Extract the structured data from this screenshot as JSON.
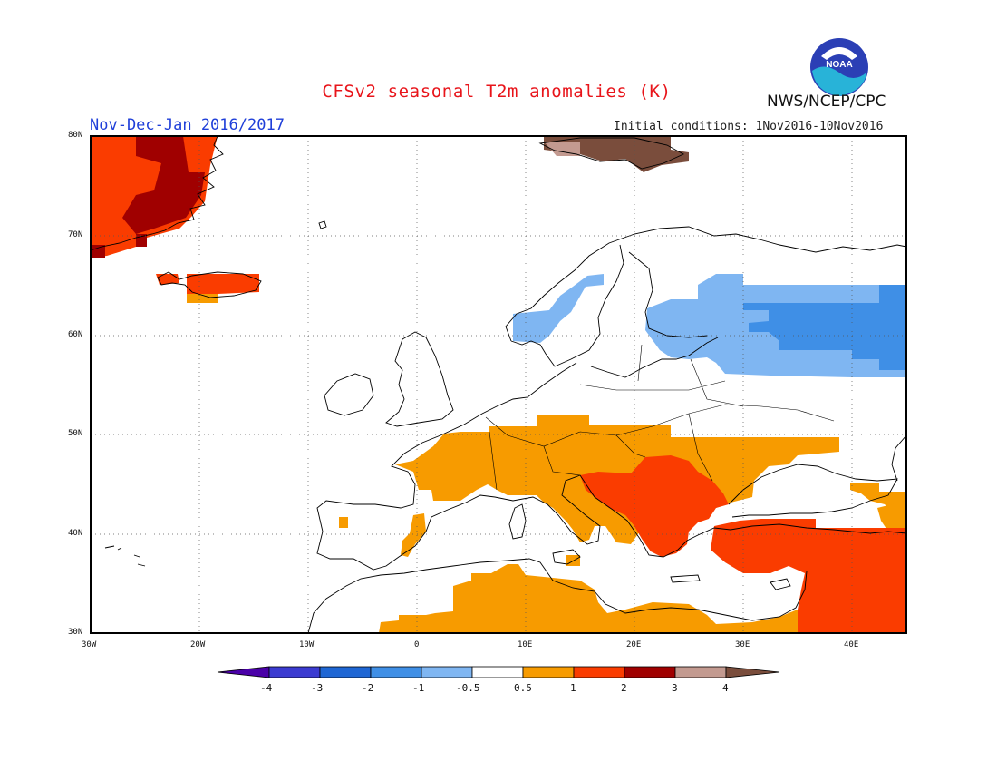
{
  "header": {
    "title": "CFSv2 seasonal T2m anomalies (K)",
    "period": "Nov-Dec-Jan 2016/2017",
    "organization": "NWS/NCEP/CPC",
    "initial_conditions": "Initial conditions: 1Nov2016-10Nov2016",
    "logo_text": "NOAA"
  },
  "map": {
    "lon_range": [
      -30,
      45
    ],
    "lat_range": [
      30,
      80
    ],
    "lon_ticks": [
      "30W",
      "20W",
      "10W",
      "0",
      "10E",
      "20E",
      "30E",
      "40E"
    ],
    "lat_ticks": [
      "80N",
      "70N",
      "60N",
      "50N",
      "40N",
      "30N"
    ],
    "grid": "dotted"
  },
  "colorbar": {
    "labels": [
      "-4",
      "-3",
      "-2",
      "-1",
      "-0.5",
      "0.5",
      "1",
      "2",
      "3",
      "4"
    ],
    "colors": [
      "#4a00a8",
      "#3b3bd1",
      "#1e66d4",
      "#3f8fe6",
      "#7fb6f2",
      "#ffffff",
      "#f79b00",
      "#fa3c00",
      "#a00000",
      "#c39a90",
      "#7a4d3c"
    ]
  },
  "legend_colors": {
    "warm_05_1": "#f79b00",
    "warm_1_2": "#fa3c00",
    "warm_2_3": "#a00000",
    "warm_3_4": "#c39a90",
    "warm_4plus": "#7a4d3c",
    "cool_m05_m1": "#7fb6f2",
    "cool_m1_m2": "#3f8fe6"
  }
}
